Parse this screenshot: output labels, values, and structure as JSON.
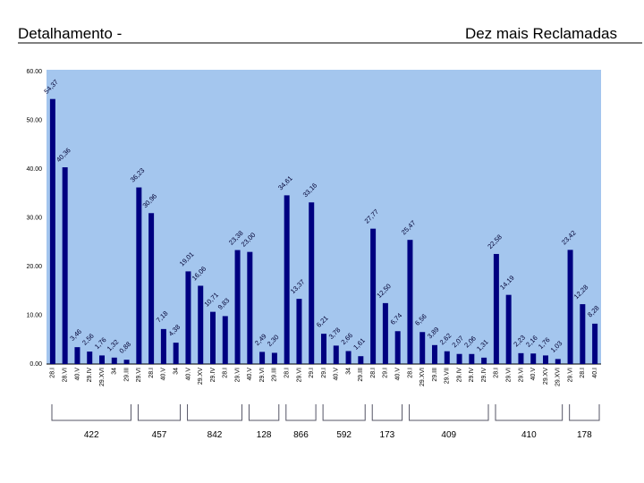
{
  "chart_data": {
    "type": "bar",
    "title": "Detalhamento -",
    "subtitle": "Dez mais Reclamadas",
    "color": "#000080",
    "background": "#a4c6ee",
    "categories": [
      "28.I",
      "28.VI",
      "40.V",
      "29.IV",
      "29.XVI",
      "34",
      "29.III",
      "29.VI",
      "28.I",
      "40.V",
      "34",
      "40.V",
      "29.XV",
      "29.IV",
      "28.I",
      "29.VI",
      "40.V",
      "29.VI",
      "29.III",
      "28.I",
      "29.VI",
      "29.I",
      "29.I",
      "40.V",
      "34",
      "29.III",
      "28.I",
      "29.I",
      "40.V",
      "28.I",
      "29.XVI",
      "29.III",
      "29.VII",
      "29.IV",
      "29.IV",
      "29.IV",
      "28.I",
      "29.VI",
      "29.VI",
      "40.V",
      "29.XV",
      "29.XVI",
      "29.VI",
      "28.I",
      "40.I"
    ],
    "values": [
      54.37,
      40.36,
      3.46,
      2.56,
      1.76,
      1.32,
      0.88,
      36.23,
      30.96,
      7.18,
      4.38,
      19.01,
      16.06,
      10.71,
      9.83,
      23.38,
      23.0,
      2.49,
      2.3,
      34.61,
      13.37,
      33.16,
      6.21,
      3.78,
      2.66,
      1.61,
      27.77,
      12.5,
      6.74,
      25.47,
      6.56,
      3.89,
      2.62,
      2.07,
      2.06,
      1.31,
      22.58,
      14.19,
      2.23,
      2.16,
      1.76,
      1.03,
      23.42,
      12.28,
      8.28
    ],
    "value_labels": [
      "54,37",
      "40,36",
      "3,46",
      "2,56",
      "1,76",
      "1,32",
      "0,88",
      "36,23",
      "30,96",
      "7,18",
      "4,38",
      "19,01",
      "16,06",
      "10,71",
      "9,83",
      "23,38",
      "23,00",
      "2,49",
      "2,30",
      "34,61",
      "13,37",
      "33,16",
      "6,21",
      "3,78",
      "2,66",
      "1,61",
      "27,77",
      "12,50",
      "6,74",
      "25,47",
      "6,56",
      "3,89",
      "2,62",
      "2,07",
      "2,06",
      "1,31",
      "22,58",
      "14,19",
      "2,23",
      "2,16",
      "1,76",
      "1,03",
      "23,42",
      "12,28",
      "8,28"
    ],
    "groups": [
      {
        "label": 422,
        "size": 7
      },
      {
        "label": 457,
        "size": 4
      },
      {
        "label": 842,
        "size": 5
      },
      {
        "label": 128,
        "size": 3
      },
      {
        "label": 866,
        "size": 3
      },
      {
        "label": 592,
        "size": 4
      },
      {
        "label": 173,
        "size": 3
      },
      {
        "label": 409,
        "size": 7
      },
      {
        "label": 410,
        "size": 6
      },
      {
        "label": 178,
        "size": 3
      }
    ],
    "ylim": [
      0,
      60
    ],
    "yticks": [
      {
        "value": 0,
        "label": "0.00"
      },
      {
        "value": 10,
        "label": "10.00"
      },
      {
        "value": 20,
        "label": "20.00"
      },
      {
        "value": 30,
        "label": "30.00"
      },
      {
        "value": 40,
        "label": "40.00"
      },
      {
        "value": 50,
        "label": "50.00"
      },
      {
        "value": 60,
        "label": "60.00"
      }
    ],
    "grid": false
  }
}
